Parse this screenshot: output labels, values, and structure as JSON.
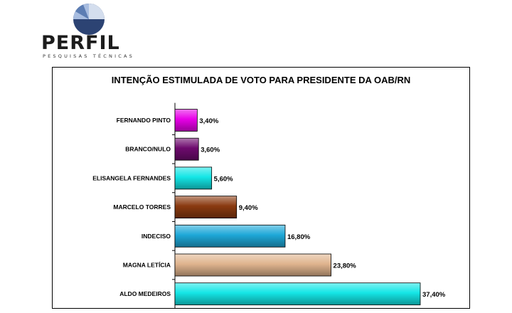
{
  "brand": {
    "name": "PERFIL",
    "tagline": "PESQUISAS TÉCNICAS",
    "colors": {
      "dark": "#2c4373",
      "mid": "#5c7db3",
      "light": "#a8bde0",
      "pale": "#d4deee"
    }
  },
  "chart_data": {
    "type": "bar",
    "orientation": "horizontal",
    "title": "INTENÇÃO ESTIMULADA DE VOTO PARA PRESIDENTE DA OAB/RN",
    "xlabel": "",
    "ylabel": "",
    "value_unit": "%",
    "xlim": [
      0,
      40
    ],
    "grid": false,
    "legend": "none",
    "categories": [
      "FERNANDO PINTO",
      "BRANCO/NULO",
      "ELISANGELA FERNANDES",
      "MARCELO TORRES",
      "INDECISO",
      "MAGNA LETÍCIA",
      "ALDO MEDEIROS"
    ],
    "values": [
      3.4,
      3.6,
      5.6,
      9.4,
      16.8,
      23.8,
      37.4
    ],
    "data_labels": [
      "3,40%",
      "3,60%",
      "5,60%",
      "9,40%",
      "16,80%",
      "23,80%",
      "37,40%"
    ],
    "colors": [
      "#e800e8",
      "#6e0a6e",
      "#14e6e6",
      "#8a3a10",
      "#1ea8d8",
      "#e0b48e",
      "#14e6e6"
    ]
  }
}
